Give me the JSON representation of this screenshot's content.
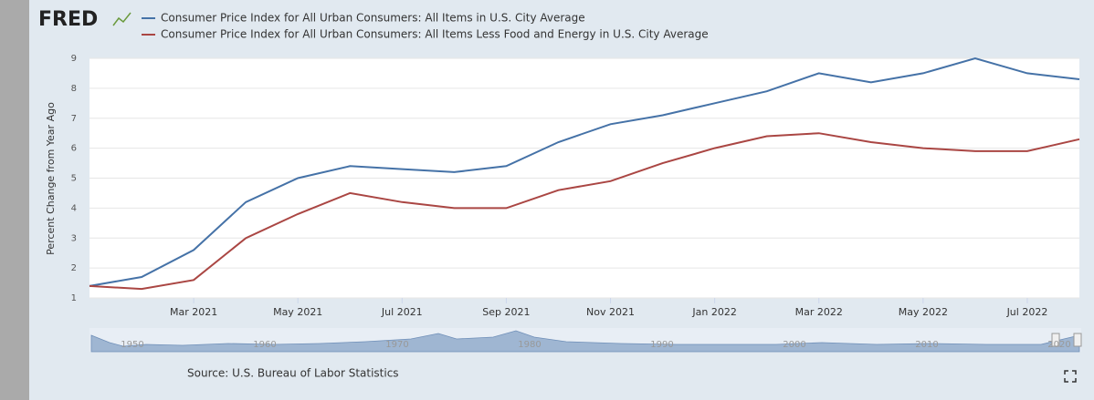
{
  "chart_data": {
    "type": "line",
    "logo": "FRED",
    "y_label": "Percent Change from Year Ago",
    "source": "Source: U.S. Bureau of Labor Statistics",
    "categories": [
      null,
      null,
      "Mar 2021",
      null,
      "May 2021",
      null,
      "Jul 2021",
      null,
      "Sep 2021",
      null,
      "Nov 2021",
      null,
      "Jan 2022",
      null,
      "Mar 2022",
      null,
      "May 2022",
      null,
      "Jul 2022",
      null
    ],
    "series": [
      {
        "name": "Consumer Price Index for All Urban Consumers: All Items in U.S. City Average",
        "color": "#4572a7",
        "values": [
          1.4,
          1.7,
          2.6,
          4.2,
          5.0,
          5.4,
          5.3,
          5.2,
          5.4,
          6.2,
          6.8,
          7.1,
          7.5,
          7.9,
          8.5,
          8.2,
          8.5,
          9.0,
          8.5,
          8.3
        ]
      },
      {
        "name": "Consumer Price Index for All Urban Consumers: All Items Less Food and Energy in U.S. City Average",
        "color": "#aa4643",
        "values": [
          1.4,
          1.3,
          1.6,
          3.0,
          3.8,
          4.5,
          4.2,
          4.0,
          4.0,
          4.6,
          4.9,
          5.5,
          6.0,
          6.4,
          6.5,
          6.2,
          6.0,
          5.9,
          5.9,
          6.3
        ]
      }
    ],
    "ylim": [
      1,
      9
    ],
    "yticks": [
      1,
      2,
      3,
      4,
      5,
      6,
      7,
      8,
      9
    ],
    "grid": true,
    "navigator_labels": [
      "1950",
      "1960",
      "1970",
      "1980",
      "1990",
      "2000",
      "2010",
      "2020"
    ]
  }
}
